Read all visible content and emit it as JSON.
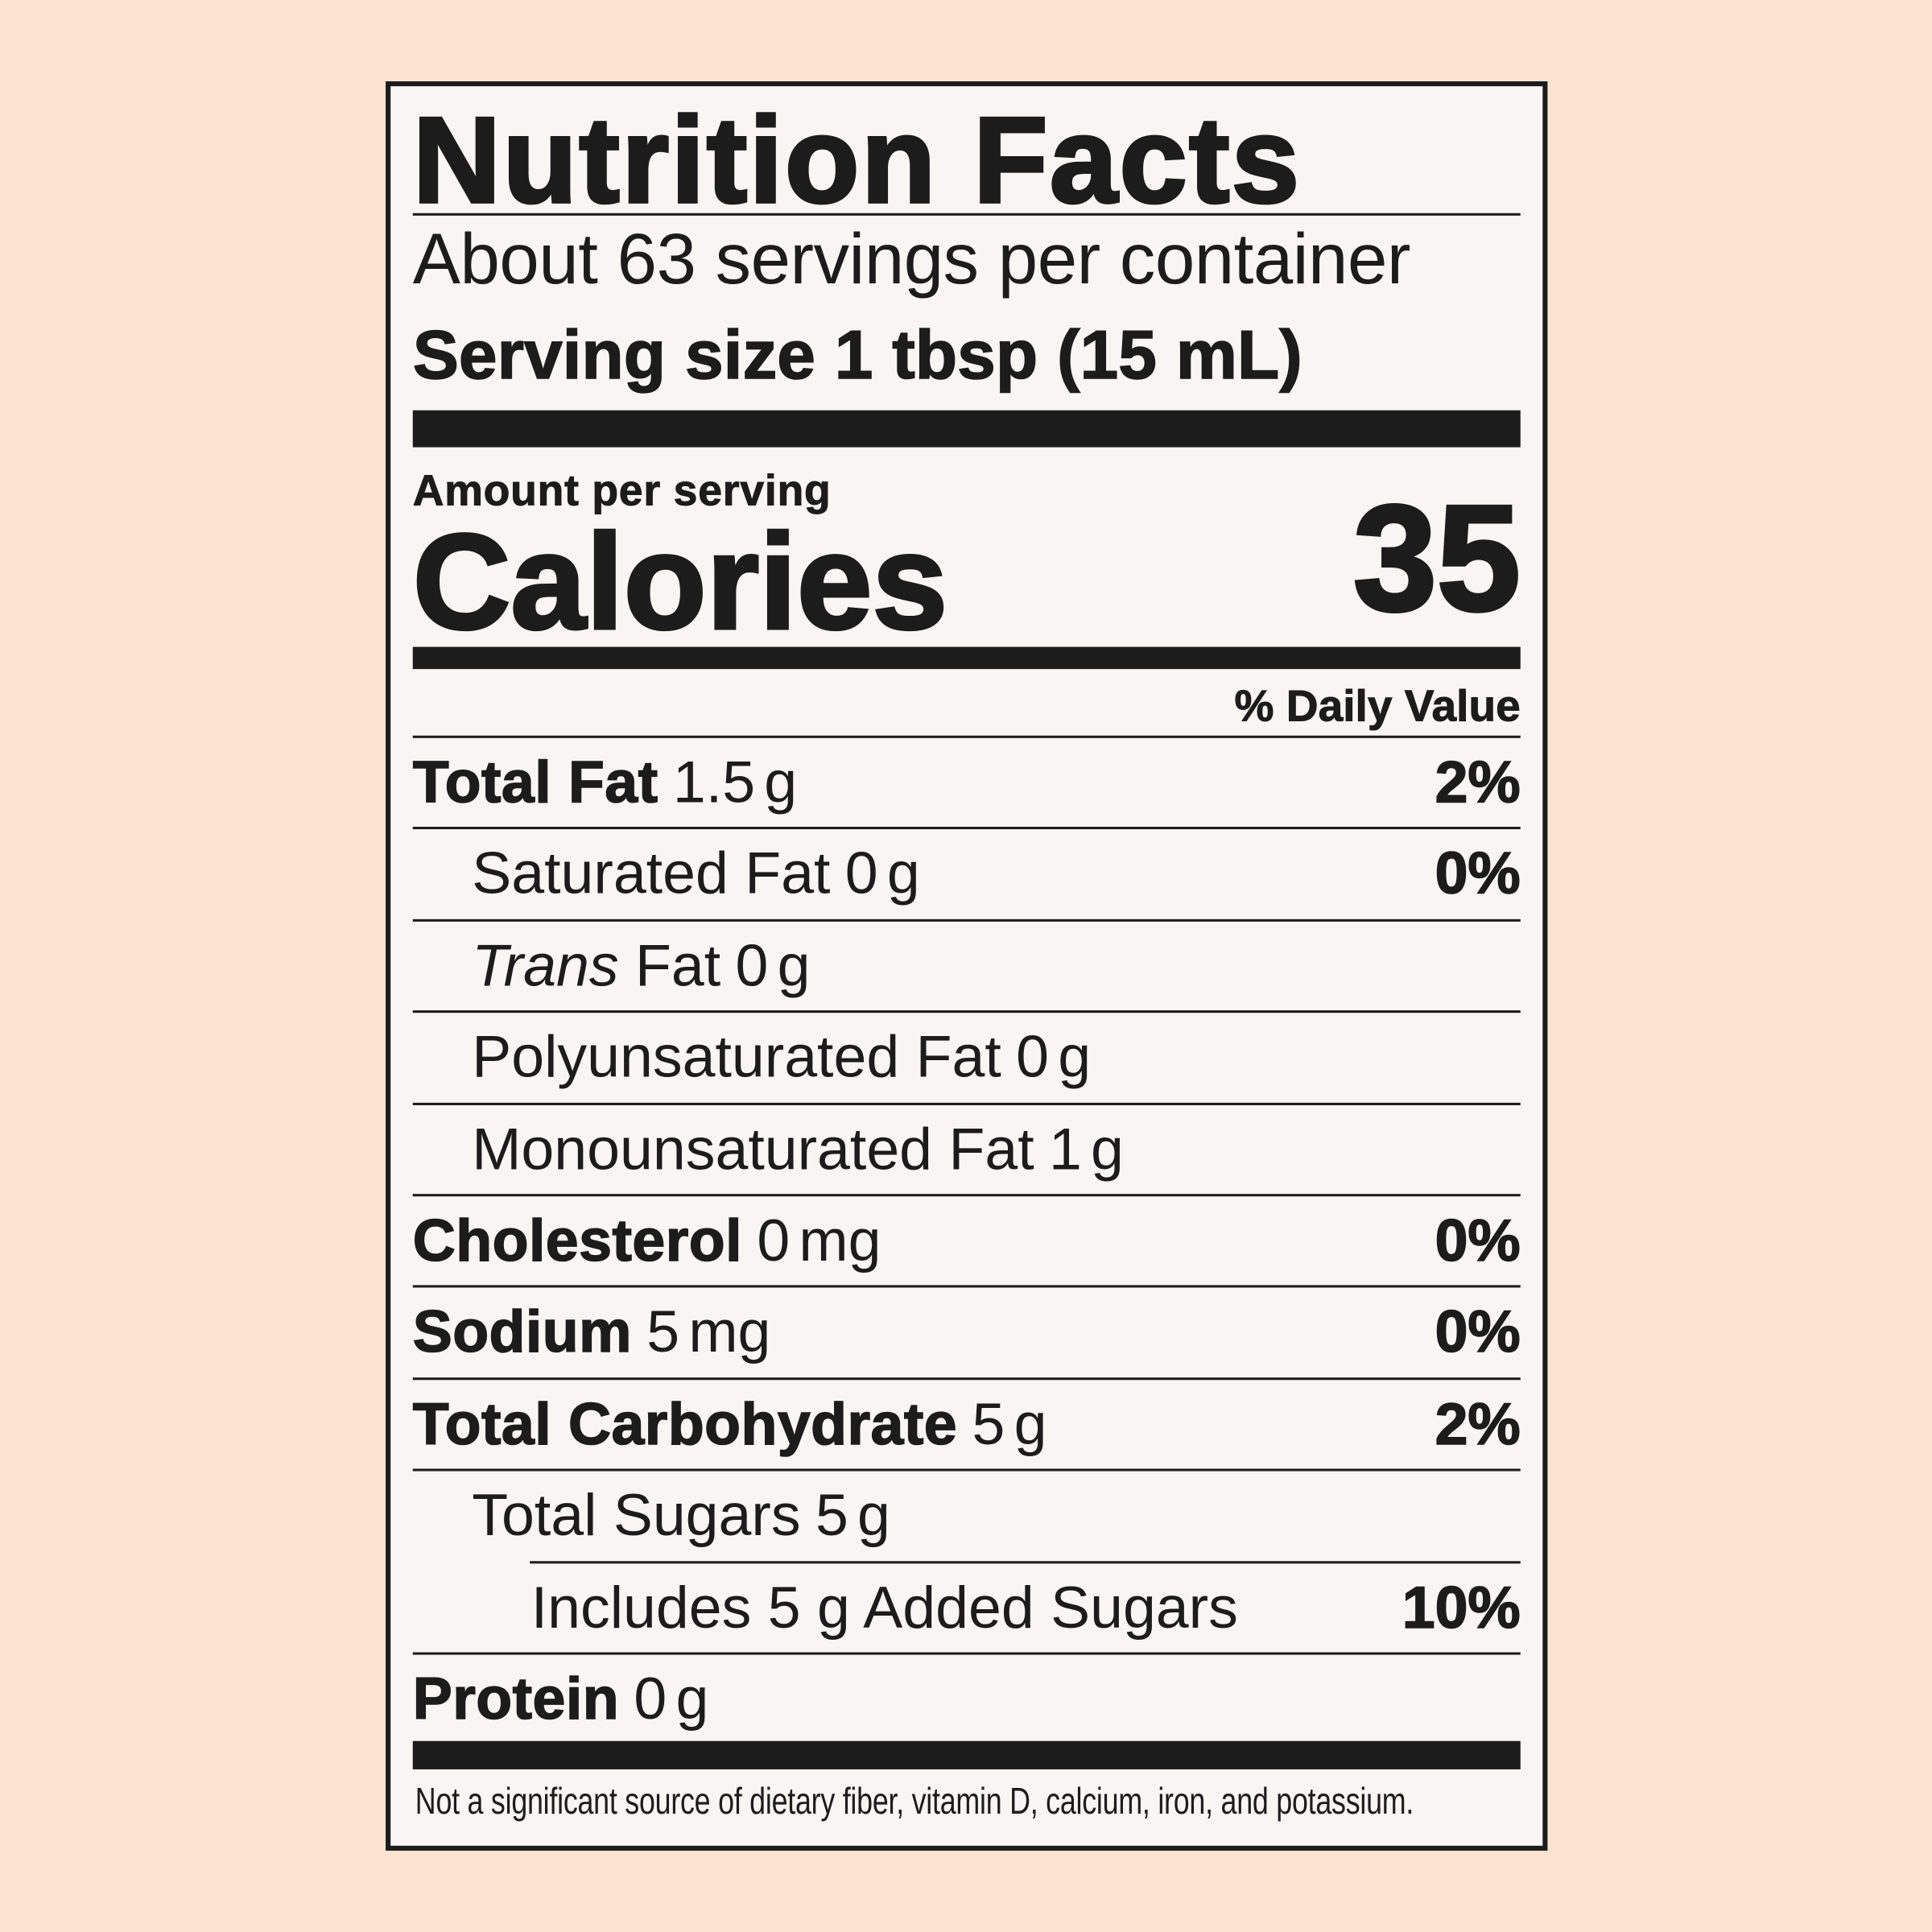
{
  "label": {
    "title": "Nutrition Facts",
    "servings_per_container": "About 63 servings per container",
    "serving_size": "Serving size 1 tbsp (15 mL)",
    "amount_per_serving": "Amount per serving",
    "calories_label": "Calories",
    "calories_value": "35",
    "daily_value_header": "% Daily Value",
    "rows": [
      {
        "name": "Total Fat",
        "amount": "1.5 g",
        "dv": "2%",
        "bold": true,
        "level": 0
      },
      {
        "name": "Saturated Fat",
        "amount": "0 g",
        "dv": "0%",
        "bold": false,
        "level": 1
      },
      {
        "italic": "Trans",
        "name": " Fat",
        "amount": "0 g",
        "dv": "",
        "bold": false,
        "level": 1
      },
      {
        "name": "Polyunsaturated Fat",
        "amount": "0 g",
        "dv": "",
        "bold": false,
        "level": 1
      },
      {
        "name": "Monounsaturated Fat",
        "amount": "1 g",
        "dv": "",
        "bold": false,
        "level": 1
      },
      {
        "name": "Cholesterol",
        "amount": "0 mg",
        "dv": "0%",
        "bold": true,
        "level": 0
      },
      {
        "name": "Sodium",
        "amount": "5 mg",
        "dv": "0%",
        "bold": true,
        "level": 0
      },
      {
        "name": "Total Carbohydrate",
        "amount": "5 g",
        "dv": "2%",
        "bold": true,
        "level": 0
      },
      {
        "name": "Total Sugars",
        "amount": "5 g",
        "dv": "",
        "bold": false,
        "level": 1
      },
      {
        "name": "Includes 5 g Added Sugars",
        "amount": "",
        "dv": "10%",
        "bold": false,
        "level": 2
      },
      {
        "name": "Protein",
        "amount": "0 g",
        "dv": "",
        "bold": true,
        "level": 0
      }
    ],
    "footnote": "Not a significant source of dietary fiber, vitamin D, calcium, iron, and potassium."
  },
  "colors": {
    "background": "#fde3d1",
    "label": "#f7f6f2",
    "ink": "#1c1c1c"
  }
}
